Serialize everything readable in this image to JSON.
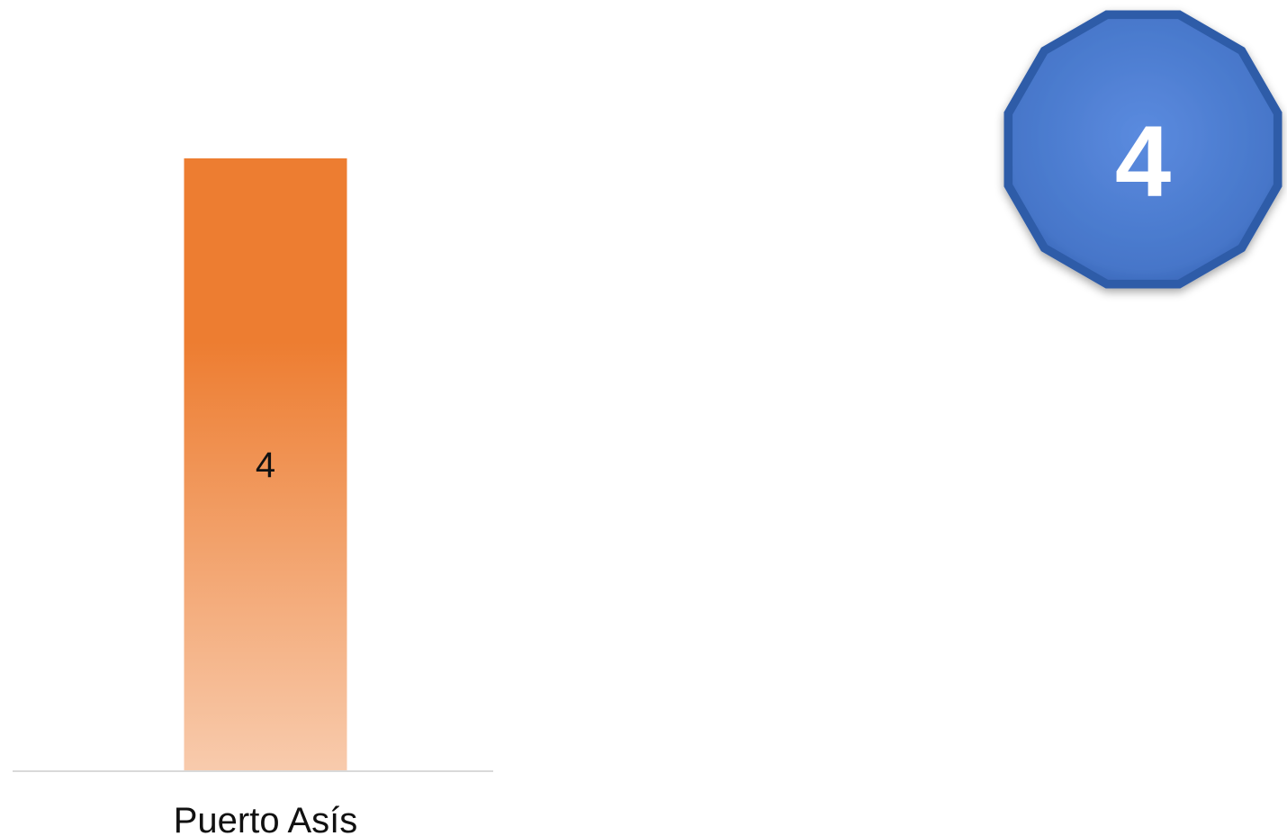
{
  "chart_data": {
    "type": "bar",
    "categories": [
      "Puerto Asís"
    ],
    "values": [
      4
    ],
    "data_labels": [
      "4"
    ],
    "title": "",
    "xlabel": "",
    "ylabel": "",
    "ylim": [
      0,
      4
    ],
    "grid": false,
    "legend": "none",
    "colors": {
      "bar_top": "#ED7D31",
      "bar_bottom": "#F8CBAD"
    }
  },
  "badge": {
    "value": "4",
    "shape": "dodecagon",
    "color": "#4A7BD0",
    "edge_color": "#2F5CA8"
  }
}
